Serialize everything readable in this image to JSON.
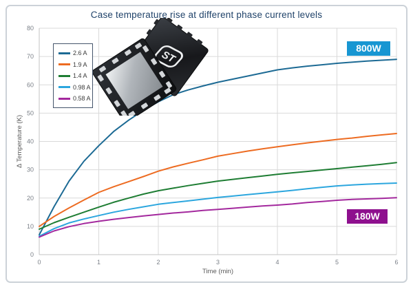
{
  "chart_data": {
    "type": "line",
    "title": "Case temperature rise at different phase current levels",
    "xlabel": "Time (min)",
    "ylabel": "Δ Temperature (K)",
    "xlim": [
      0,
      6
    ],
    "ylim": [
      0,
      80
    ],
    "x_ticks": [
      0,
      1,
      2,
      3,
      4,
      5,
      6
    ],
    "y_ticks": [
      0,
      10,
      20,
      30,
      40,
      50,
      60,
      70,
      80
    ],
    "grid": true,
    "legend_position": "top-left",
    "x": [
      0,
      0.25,
      0.5,
      0.75,
      1,
      1.25,
      1.5,
      1.75,
      2,
      2.25,
      2.5,
      2.75,
      3,
      3.25,
      3.5,
      3.75,
      4,
      4.25,
      4.5,
      4.75,
      5,
      5.25,
      5.5,
      5.75,
      6
    ],
    "series": [
      {
        "name": "2.6 A",
        "color": "#1c6a94",
        "values": [
          7,
          17,
          26,
          33,
          38.5,
          43.5,
          47.5,
          51,
          54,
          56.5,
          58.2,
          59.6,
          60.9,
          62,
          63.1,
          64.2,
          65.3,
          66,
          66.6,
          67.1,
          67.6,
          68,
          68.4,
          68.7,
          69
        ]
      },
      {
        "name": "1.9 A",
        "color": "#ed6b21",
        "values": [
          10,
          13.5,
          16.5,
          19.3,
          22,
          24,
          25.8,
          27.6,
          29.5,
          31,
          32.3,
          33.5,
          34.8,
          35.7,
          36.6,
          37.4,
          38.1,
          38.8,
          39.5,
          40.1,
          40.7,
          41.2,
          41.8,
          42.3,
          42.8
        ]
      },
      {
        "name": "1.4 A",
        "color": "#1e7d33",
        "values": [
          9,
          11.3,
          13.2,
          15,
          16.8,
          18.5,
          20,
          21.4,
          22.6,
          23.5,
          24.4,
          25.2,
          26,
          26.6,
          27.2,
          27.8,
          28.4,
          28.9,
          29.4,
          29.9,
          30.4,
          30.9,
          31.4,
          31.9,
          32.5
        ]
      },
      {
        "name": "0.98 A",
        "color": "#2ba6de",
        "values": [
          6.5,
          9.2,
          11.2,
          12.6,
          13.8,
          15,
          16,
          16.9,
          17.8,
          18.4,
          19,
          19.6,
          20.2,
          20.7,
          21.2,
          21.7,
          22.2,
          22.7,
          23.3,
          23.8,
          24.3,
          24.6,
          24.9,
          25.1,
          25.3
        ]
      },
      {
        "name": "0.58 A",
        "color": "#a3289d",
        "values": [
          6.2,
          8.4,
          9.9,
          11,
          11.8,
          12.5,
          13.1,
          13.7,
          14.2,
          14.7,
          15.1,
          15.6,
          16,
          16.4,
          16.8,
          17.2,
          17.5,
          17.9,
          18.4,
          18.8,
          19.2,
          19.5,
          19.7,
          19.9,
          20.1
        ]
      }
    ],
    "annotations": [
      {
        "label": "800W",
        "color": "#1796d2",
        "text_color": "#ffffff"
      },
      {
        "label": "180W",
        "color": "#8e108e",
        "text_color": "#ffffff"
      }
    ]
  },
  "colors": {
    "frame_border": "#ccd2d8",
    "title_text": "#20436a",
    "grid": "#d9d9d9",
    "axis_line": "#c3c3c3",
    "tick_text": "#7b8088",
    "axis_title_text": "#595959",
    "legend_border": "#44546a",
    "plot_bg": "#ffffff"
  },
  "decor": {
    "st_logo_text": "ST"
  }
}
